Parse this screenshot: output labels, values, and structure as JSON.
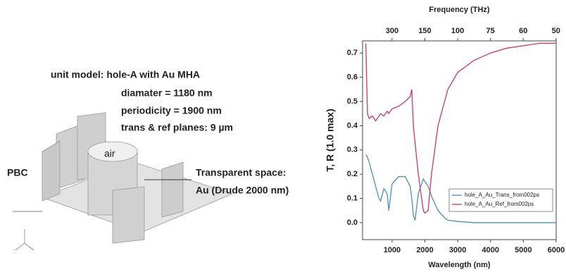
{
  "model": {
    "title": "unit model: hole-A with Au MHA",
    "params": [
      "diamater = 1180 nm",
      "periodicity = 1900 nm",
      "trans & ref planes: 9 µm"
    ],
    "pbc": "PBC",
    "air": "air",
    "space": [
      "Transparent space:",
      "Au (Drude 2000 nm)"
    ]
  },
  "chart_data": {
    "type": "line",
    "xlabel": "Wavelength (nm)",
    "ylabel": "T, R (1.0 max)",
    "x2label": "Frequency (THz)",
    "x": [
      200,
      250,
      300,
      400,
      500,
      600,
      650,
      750,
      850,
      900,
      1000,
      1200,
      1400,
      1550,
      1600,
      1650,
      1700,
      1800,
      1950,
      2000,
      2100,
      2200,
      2300,
      2400,
      2600,
      2700,
      3000,
      3500,
      4000,
      4500,
      5000,
      5500,
      6000
    ],
    "series": [
      {
        "name": "hole_A_Au_Trans_from002ps",
        "color": "#4a8fc0",
        "values": [
          0.28,
          0.27,
          0.25,
          0.2,
          0.15,
          0.1,
          0.09,
          0.14,
          0.12,
          0.05,
          0.16,
          0.19,
          0.19,
          0.15,
          0.1,
          0.03,
          0.01,
          0.12,
          0.18,
          0.17,
          0.15,
          0.11,
          0.08,
          0.05,
          0.02,
          0.01,
          0.005,
          0,
          0,
          0,
          0,
          0,
          0
        ]
      },
      {
        "name": "hole_A_Au_Ref_from002ps",
        "color": "#d6336c",
        "values": [
          0.74,
          0.45,
          0.43,
          0.44,
          0.42,
          0.44,
          0.45,
          0.44,
          0.46,
          0.45,
          0.47,
          0.48,
          0.5,
          0.52,
          0.55,
          0.4,
          0.33,
          0.2,
          0.05,
          0.04,
          0.05,
          0.2,
          0.3,
          0.4,
          0.5,
          0.55,
          0.62,
          0.67,
          0.7,
          0.72,
          0.73,
          0.74,
          0.74
        ]
      }
    ],
    "xlim": [
      100,
      6000
    ],
    "xticks": [
      1000,
      2000,
      3000,
      4000,
      5000,
      6000
    ],
    "x2ticks": [
      300,
      150,
      100,
      75,
      60,
      50
    ],
    "ylim": [
      -0.07,
      0.75
    ],
    "yticks": [
      {
        "value": 0,
        "label": "0.0"
      },
      0.1,
      0.2,
      0.3,
      0.4,
      0.5,
      0.6,
      0.7
    ],
    "legend": "lower right"
  }
}
